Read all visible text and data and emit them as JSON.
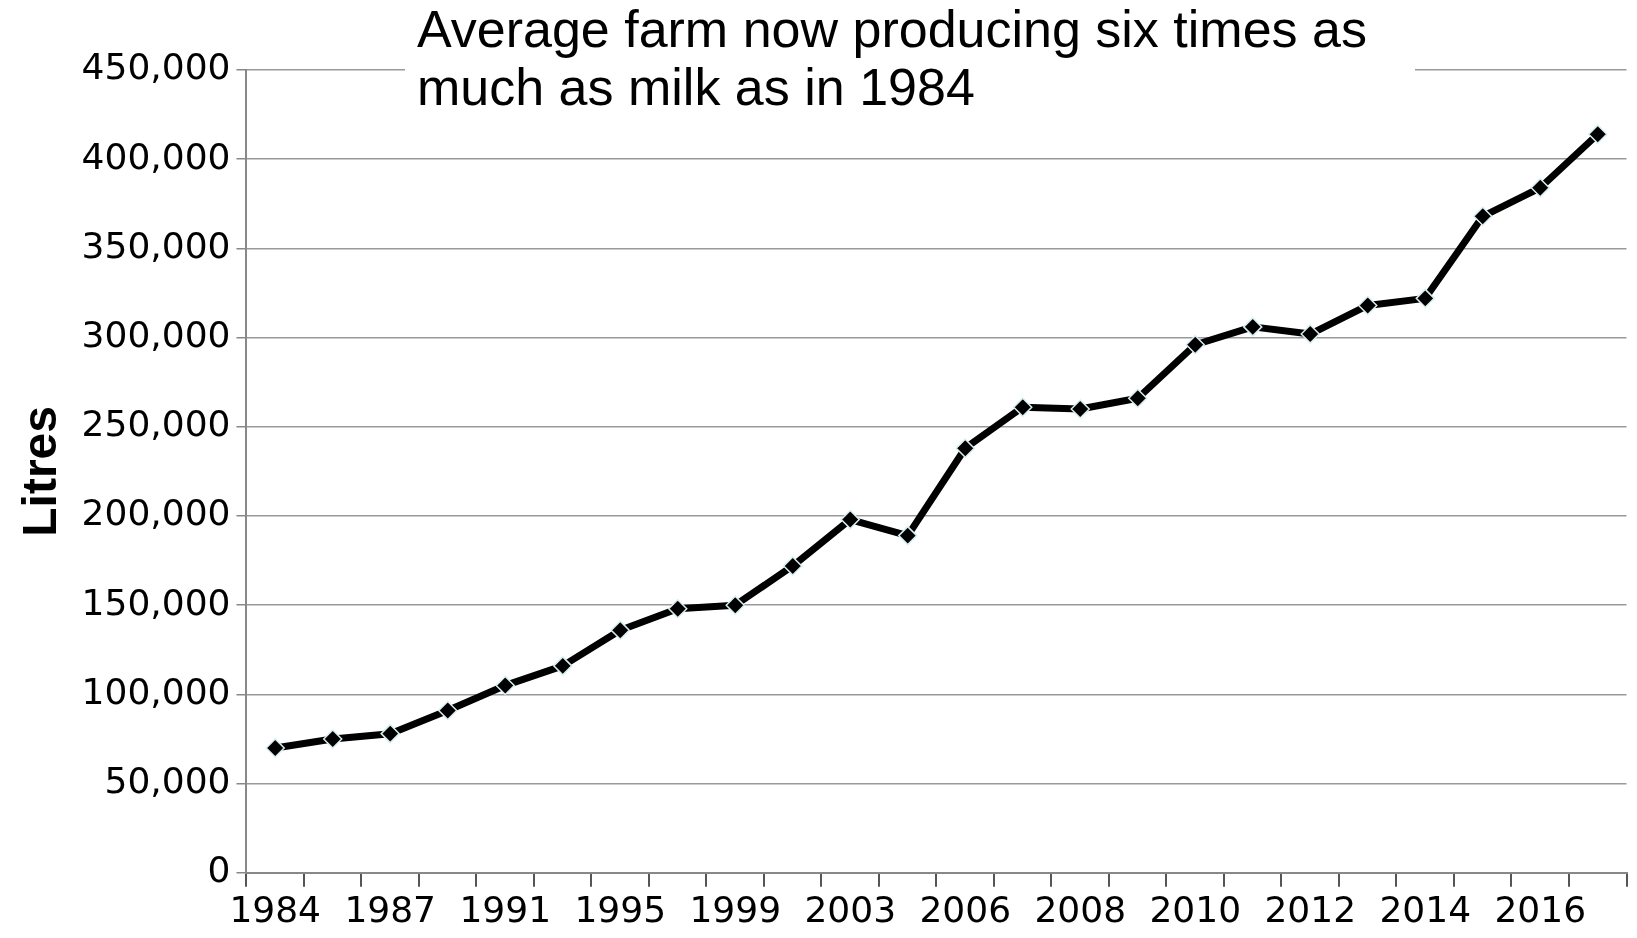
{
  "chart_data": {
    "type": "line",
    "title": "Average farm now producing six times as much as milk as in 1984",
    "ylabel": "Litres",
    "categories": [
      "1984",
      null,
      "1987",
      null,
      "1991",
      null,
      "1995",
      null,
      "1999",
      null,
      "2003",
      null,
      "2006",
      null,
      "2008",
      null,
      "2010",
      null,
      "2012",
      null,
      "2014",
      null,
      "2016",
      null
    ],
    "series": [
      {
        "color": "#000000",
        "values": [
          70000,
          75000,
          78000,
          91000,
          105000,
          116000,
          136000,
          148000,
          150000,
          172000,
          198000,
          189000,
          238000,
          261000,
          260000,
          266000,
          296000,
          306000,
          302000,
          318000,
          322000,
          368000,
          384000,
          414000
        ]
      }
    ],
    "ylim": [
      0,
      450000
    ],
    "yticks": [
      {
        "value": 0,
        "label": "0"
      },
      {
        "value": 50000,
        "label": "50,000"
      },
      {
        "value": 100000,
        "label": "100,000"
      },
      {
        "value": 150000,
        "label": "150,000"
      },
      {
        "value": 200000,
        "label": "200,000"
      },
      {
        "value": 250000,
        "label": "250,000"
      },
      {
        "value": 300000,
        "label": "300,000"
      },
      {
        "value": 350000,
        "label": "350,000"
      },
      {
        "value": 400000,
        "label": "400,000"
      },
      {
        "value": 450000,
        "label": "450,000"
      }
    ],
    "grid": "y",
    "legend": false,
    "marker": "diamond",
    "line_style": "solid"
  }
}
